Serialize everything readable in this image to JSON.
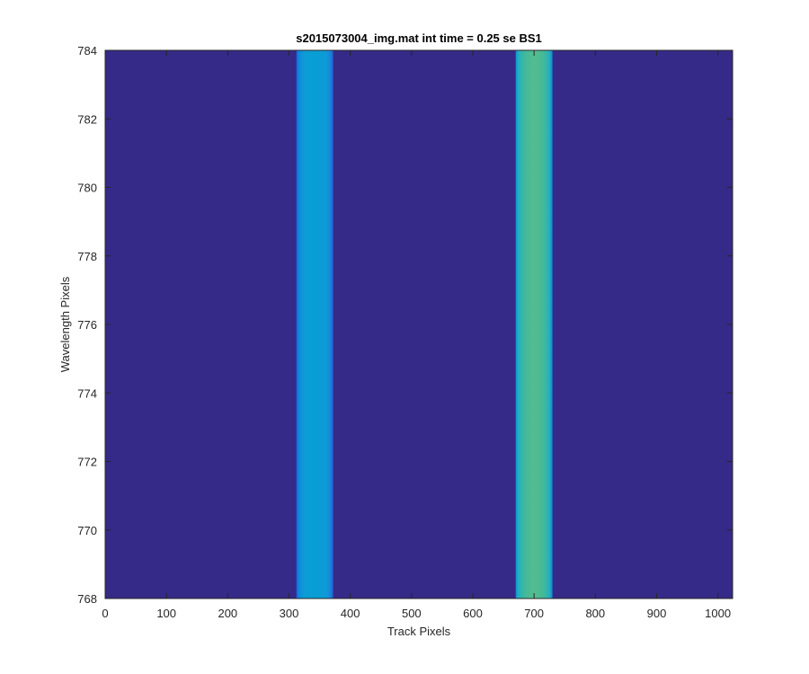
{
  "chart_data": {
    "type": "heatmap",
    "title": "s2015073004_img.mat int time = 0.25 se   BS1",
    "xlabel": "Track Pixels",
    "ylabel": "Wavelength Pixels",
    "xlim": [
      0,
      1024
    ],
    "ylim": [
      768,
      784
    ],
    "xticks": [
      0,
      100,
      200,
      300,
      400,
      500,
      600,
      700,
      800,
      900,
      1000
    ],
    "yticks": [
      768,
      770,
      772,
      774,
      776,
      778,
      780,
      782,
      784
    ],
    "grid": false,
    "colormap": "parula",
    "background_color": "#352a87",
    "bands": [
      {
        "x_start": 312,
        "x_end": 372,
        "profile": [
          {
            "x": 312,
            "color": "#1a5fdc"
          },
          {
            "x": 316,
            "color": "#0f8ad8"
          },
          {
            "x": 325,
            "color": "#0d9cd6"
          },
          {
            "x": 342,
            "color": "#079fd3"
          },
          {
            "x": 360,
            "color": "#0d9ad7"
          },
          {
            "x": 367,
            "color": "#1787d9"
          },
          {
            "x": 372,
            "color": "#2060d8"
          }
        ]
      },
      {
        "x_start": 670,
        "x_end": 730,
        "profile": [
          {
            "x": 670,
            "color": "#0f8ed6"
          },
          {
            "x": 674,
            "color": "#20b0c0"
          },
          {
            "x": 685,
            "color": "#42b99a"
          },
          {
            "x": 700,
            "color": "#55bd8e"
          },
          {
            "x": 715,
            "color": "#45b997"
          },
          {
            "x": 725,
            "color": "#24b0bd"
          },
          {
            "x": 730,
            "color": "#1188d5"
          }
        ]
      }
    ]
  }
}
